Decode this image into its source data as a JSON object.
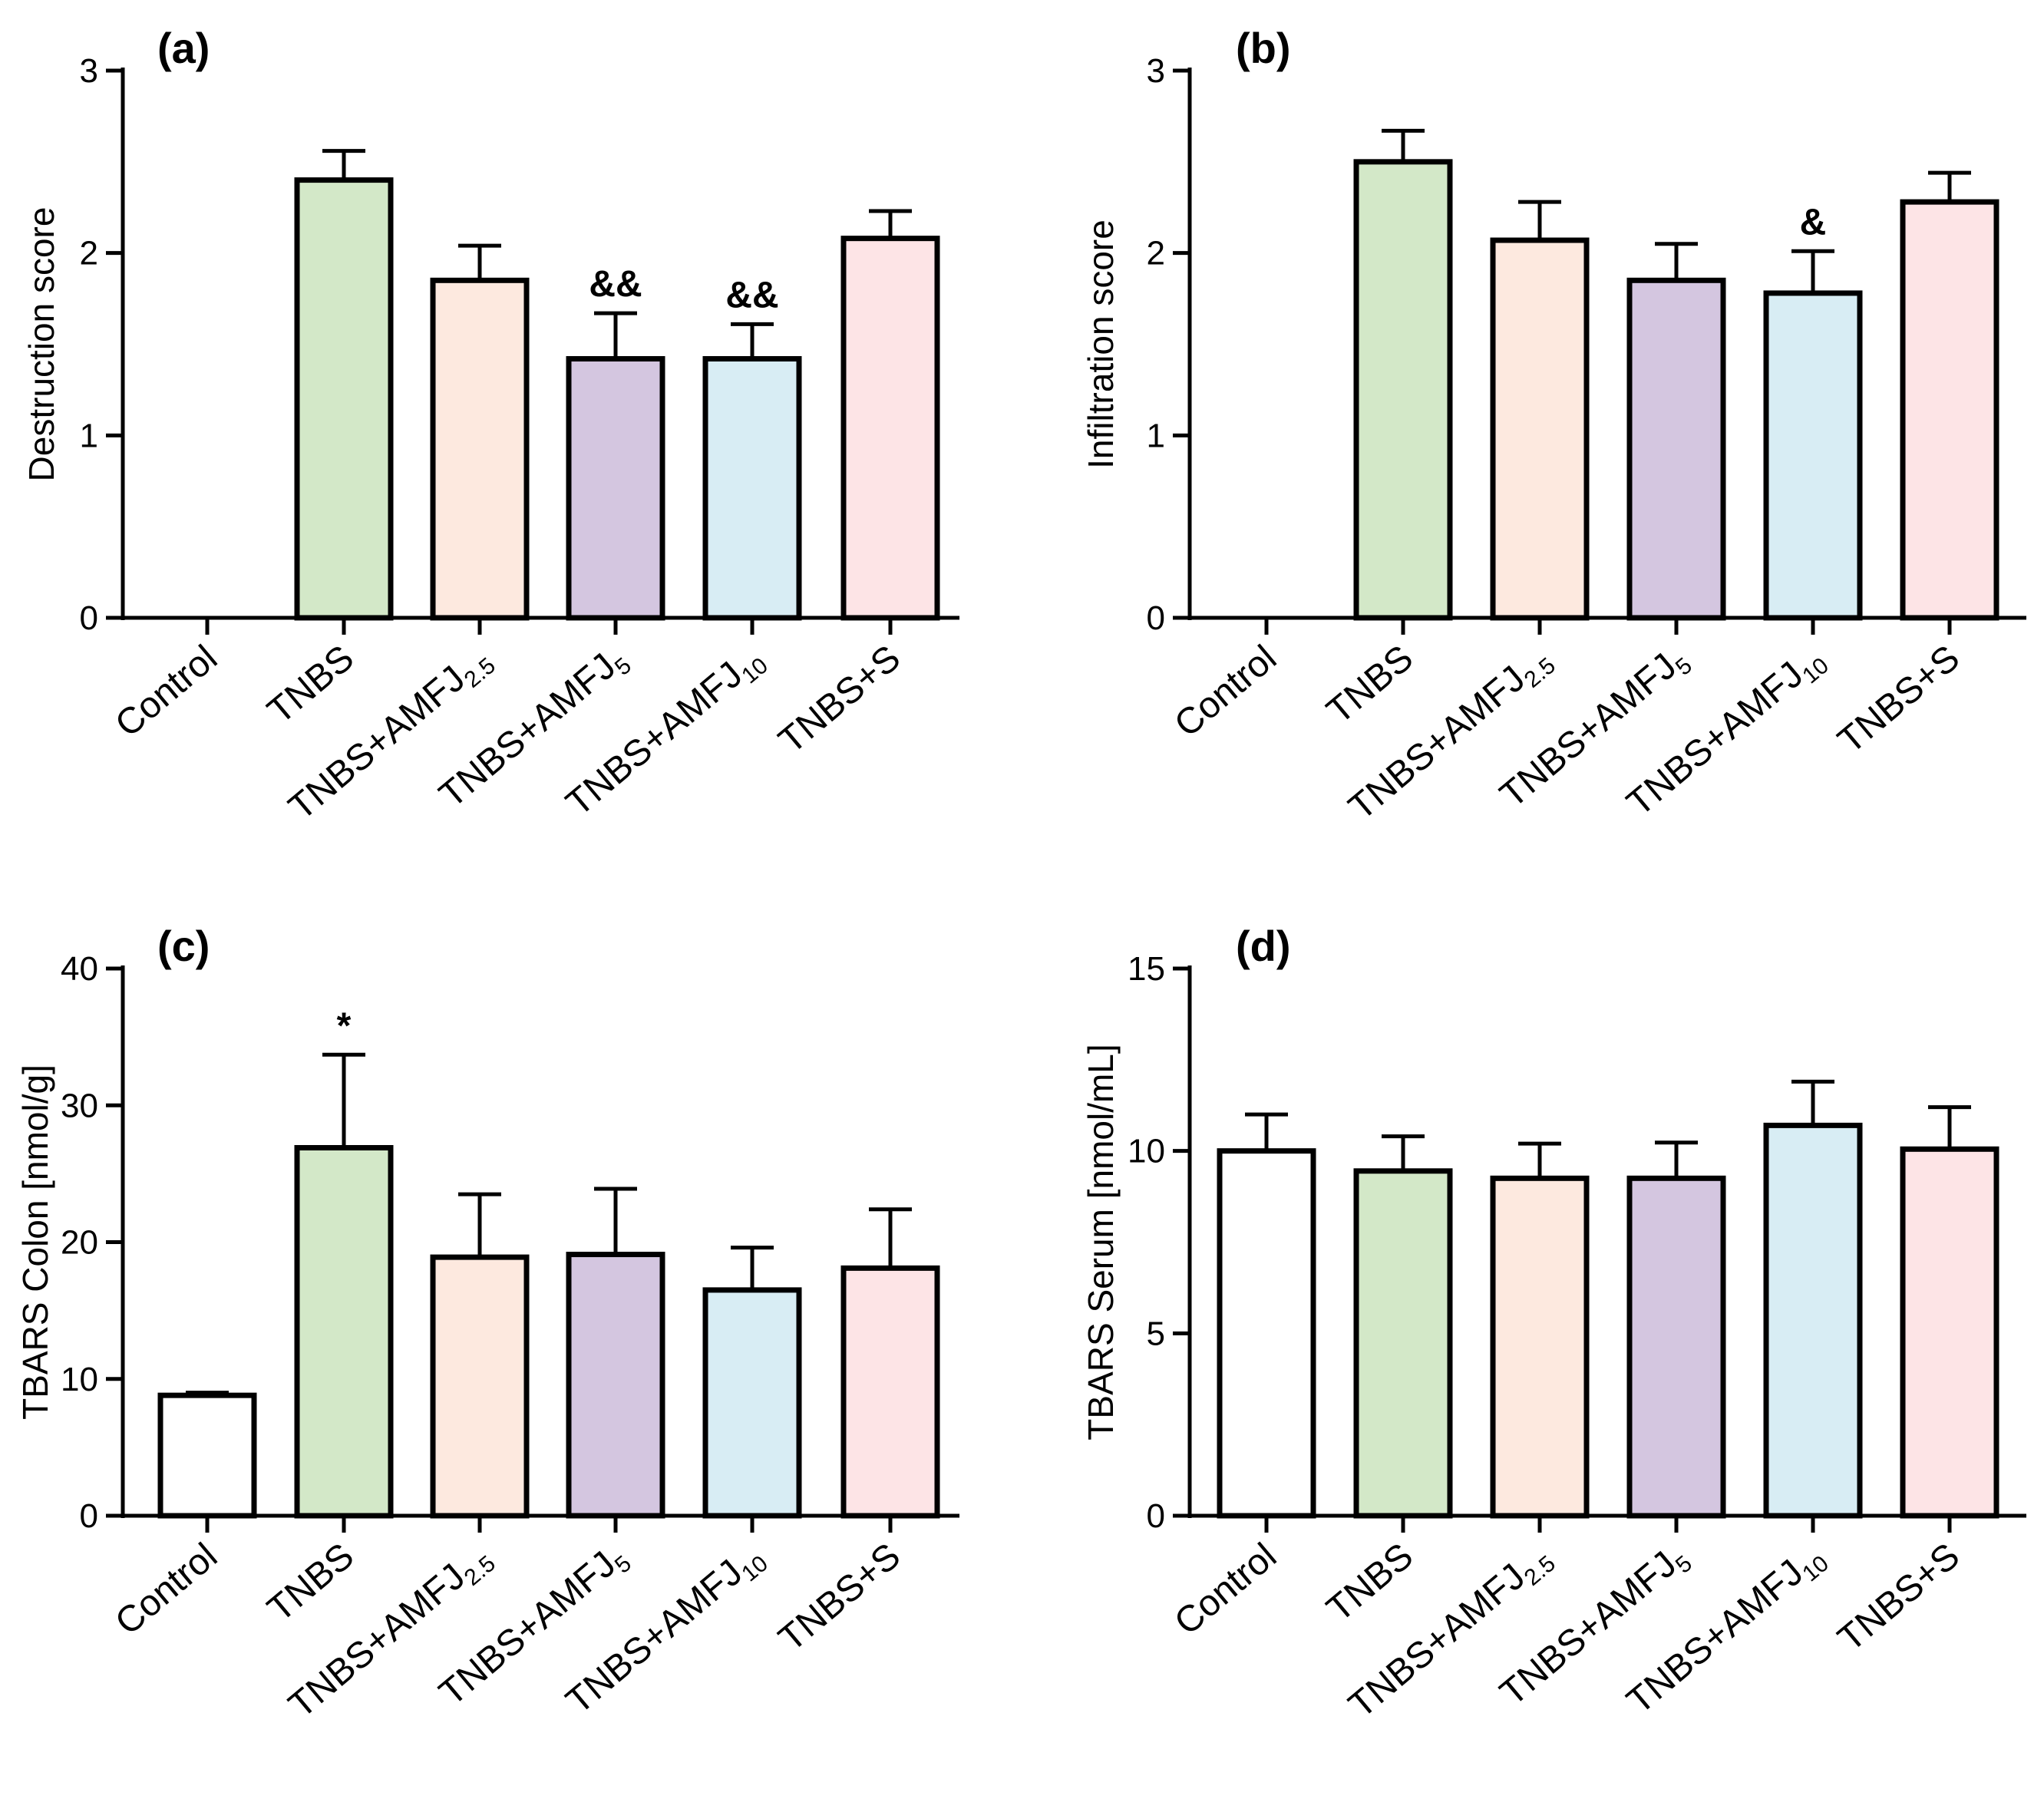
{
  "colors": {
    "control": "#ffffff",
    "tnbs": "#d3e8c8",
    "amfj25": "#fde9df",
    "amfj5": "#d4c6e0",
    "amfj10": "#d8edf4",
    "tnbs_s": "#fde4e6",
    "stroke": "#000000"
  },
  "categories": [
    {
      "base": "Control",
      "sub": ""
    },
    {
      "base": "TNBS",
      "sub": ""
    },
    {
      "base": "TNBS+AMFJ",
      "sub": "2.5"
    },
    {
      "base": "TNBS+AMFJ",
      "sub": "5"
    },
    {
      "base": "TNBS+AMFJ",
      "sub": "10"
    },
    {
      "base": "TNBS+S",
      "sub": ""
    }
  ],
  "chart_data": [
    {
      "type": "bar",
      "panel": "(a)",
      "ylabel": "Destruction score",
      "ylim": [
        0,
        3
      ],
      "yticks": [
        0,
        1,
        2,
        3
      ],
      "values": [
        0,
        2.4,
        1.85,
        1.42,
        1.42,
        2.08
      ],
      "errors": [
        0,
        0.16,
        0.19,
        0.25,
        0.19,
        0.15
      ],
      "annotations": [
        "",
        "",
        "",
        "&&",
        "&&",
        ""
      ]
    },
    {
      "type": "bar",
      "panel": "(b)",
      "ylabel": "Infiltration score",
      "ylim": [
        0,
        3
      ],
      "yticks": [
        0,
        1,
        2,
        3
      ],
      "values": [
        0,
        2.5,
        2.07,
        1.85,
        1.78,
        2.28
      ],
      "errors": [
        0,
        0.17,
        0.21,
        0.2,
        0.23,
        0.16
      ],
      "annotations": [
        "",
        "",
        "",
        "",
        "&",
        ""
      ]
    },
    {
      "type": "bar",
      "panel": "(c)",
      "ylabel": "TBARS Colon [nmol/g]",
      "ylim": [
        0,
        40
      ],
      "yticks": [
        0,
        10,
        20,
        30,
        40
      ],
      "values": [
        8.8,
        26.9,
        18.9,
        19.1,
        16.5,
        18.1
      ],
      "errors": [
        0.2,
        6.8,
        4.6,
        4.8,
        3.1,
        4.3
      ],
      "annotations": [
        "",
        "*",
        "",
        "",
        "",
        ""
      ]
    },
    {
      "type": "bar",
      "panel": "(d)",
      "ylabel": "TBARS Serum [nmol/mL]",
      "ylim": [
        0,
        15
      ],
      "yticks": [
        0,
        5,
        10,
        15
      ],
      "values": [
        10,
        9.45,
        9.25,
        9.25,
        10.7,
        10.05
      ],
      "errors": [
        1.0,
        0.95,
        0.95,
        0.98,
        1.2,
        1.15
      ],
      "annotations": [
        "",
        "",
        "",
        "",
        "",
        ""
      ]
    }
  ]
}
